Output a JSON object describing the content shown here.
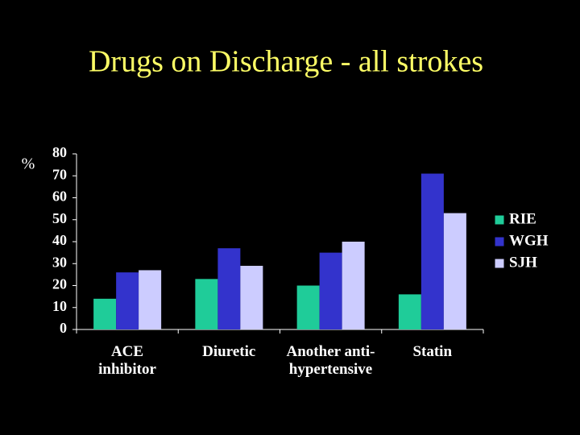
{
  "chart_data": {
    "type": "bar",
    "title": "Drugs on Discharge - all strokes",
    "y_label": "%",
    "categories": [
      "ACE\ninhibitor",
      "Diuretic",
      "Another anti-\nhypertensive",
      "Statin"
    ],
    "series": [
      {
        "name": "RIE",
        "color": "#1fcc99",
        "values": [
          14,
          23,
          20,
          16
        ]
      },
      {
        "name": "WGH",
        "color": "#3333cc",
        "values": [
          26,
          37,
          35,
          71
        ]
      },
      {
        "name": "SJH",
        "color": "#ccccff",
        "values": [
          27,
          29,
          40,
          53
        ]
      }
    ],
    "ylim": [
      0,
      80
    ],
    "yticks": [
      0,
      10,
      20,
      30,
      40,
      50,
      60,
      70,
      80
    ],
    "grid": false,
    "legend": "right"
  }
}
